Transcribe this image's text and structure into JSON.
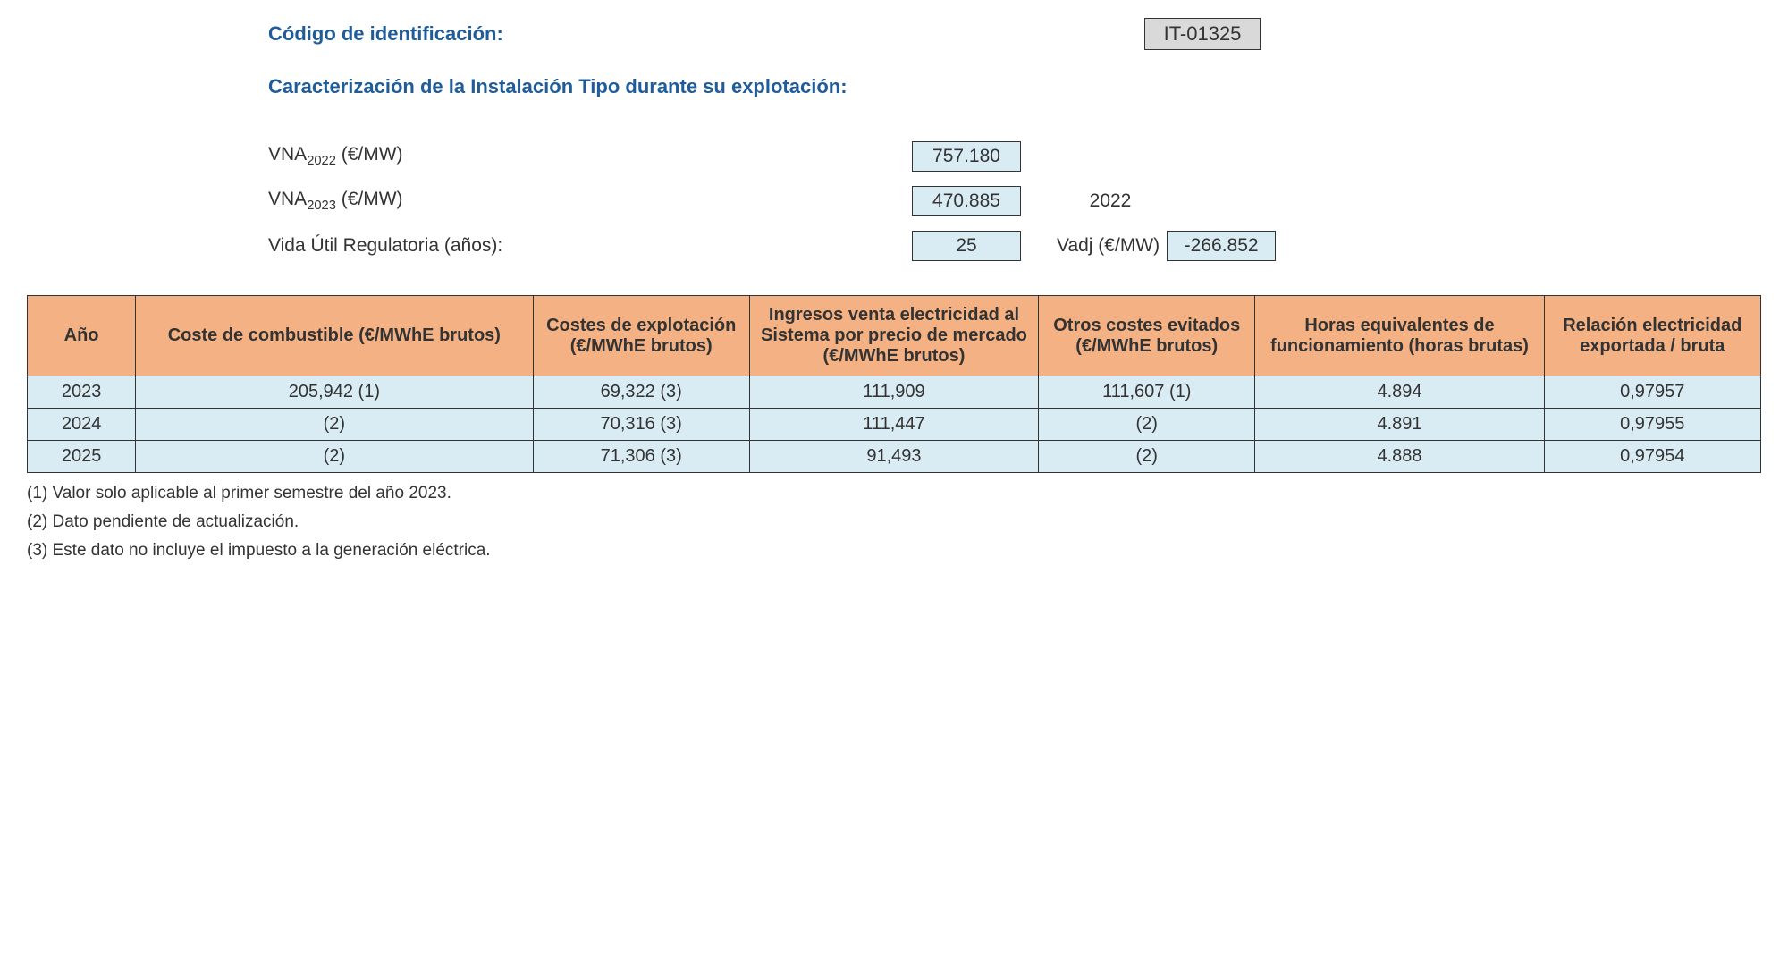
{
  "header": {
    "code_label": "Código de identificación:",
    "code_value": "IT-01325",
    "section_title": "Caracterización de la Instalación Tipo durante su explotación:",
    "vna_2022_label_pre": "VNA",
    "vna_2022_label_sub": "2022",
    "vna_2022_label_post": " (€/MW)",
    "vna_2022_value": "757.180",
    "vna_2023_label_pre": "VNA",
    "vna_2023_label_sub": "2023",
    "vna_2023_label_post": " (€/MW)",
    "vna_2023_value": "470.885",
    "year_right": "2022",
    "vida_label": "Vida Útil Regulatoria (años):",
    "vida_value": "25",
    "vadj_label": "Vadj (€/MW)",
    "vadj_value": "-266.852"
  },
  "table": {
    "columns": [
      "Año",
      "Coste de combustible (€/MWhE brutos)",
      "Costes de explotación (€/MWhE brutos)",
      "Ingresos venta electricidad al Sistema por precio de mercado (€/MWhE brutos)",
      "Otros costes evitados (€/MWhE brutos)",
      "Horas equivalentes de funcionamiento (horas brutas)",
      "Relación electricidad exportada / bruta"
    ],
    "rows": [
      [
        "2023",
        "205,942 (1)",
        "69,322 (3)",
        "111,909",
        "111,607 (1)",
        "4.894",
        "0,97957"
      ],
      [
        "2024",
        "(2)",
        "70,316 (3)",
        "111,447",
        "(2)",
        "4.891",
        "0,97955"
      ],
      [
        "2025",
        "(2)",
        "71,306 (3)",
        "91,493",
        "(2)",
        "4.888",
        "0,97954"
      ]
    ],
    "col_classes": [
      "col-year",
      "col-fuel",
      "col-op",
      "col-inc",
      "col-oth",
      "col-hrs",
      "col-rel"
    ]
  },
  "footnotes": [
    "(1) Valor solo aplicable al primer semestre del año 2023.",
    "(2) Dato pendiente de actualización.",
    "(3) Este dato no incluye el impuesto a la generación eléctrica."
  ],
  "colors": {
    "heading": "#1f5c99",
    "th_bg": "#f4b183",
    "td_bg": "#d9ebf3",
    "code_bg": "#d9d9d9",
    "border": "#333333"
  }
}
